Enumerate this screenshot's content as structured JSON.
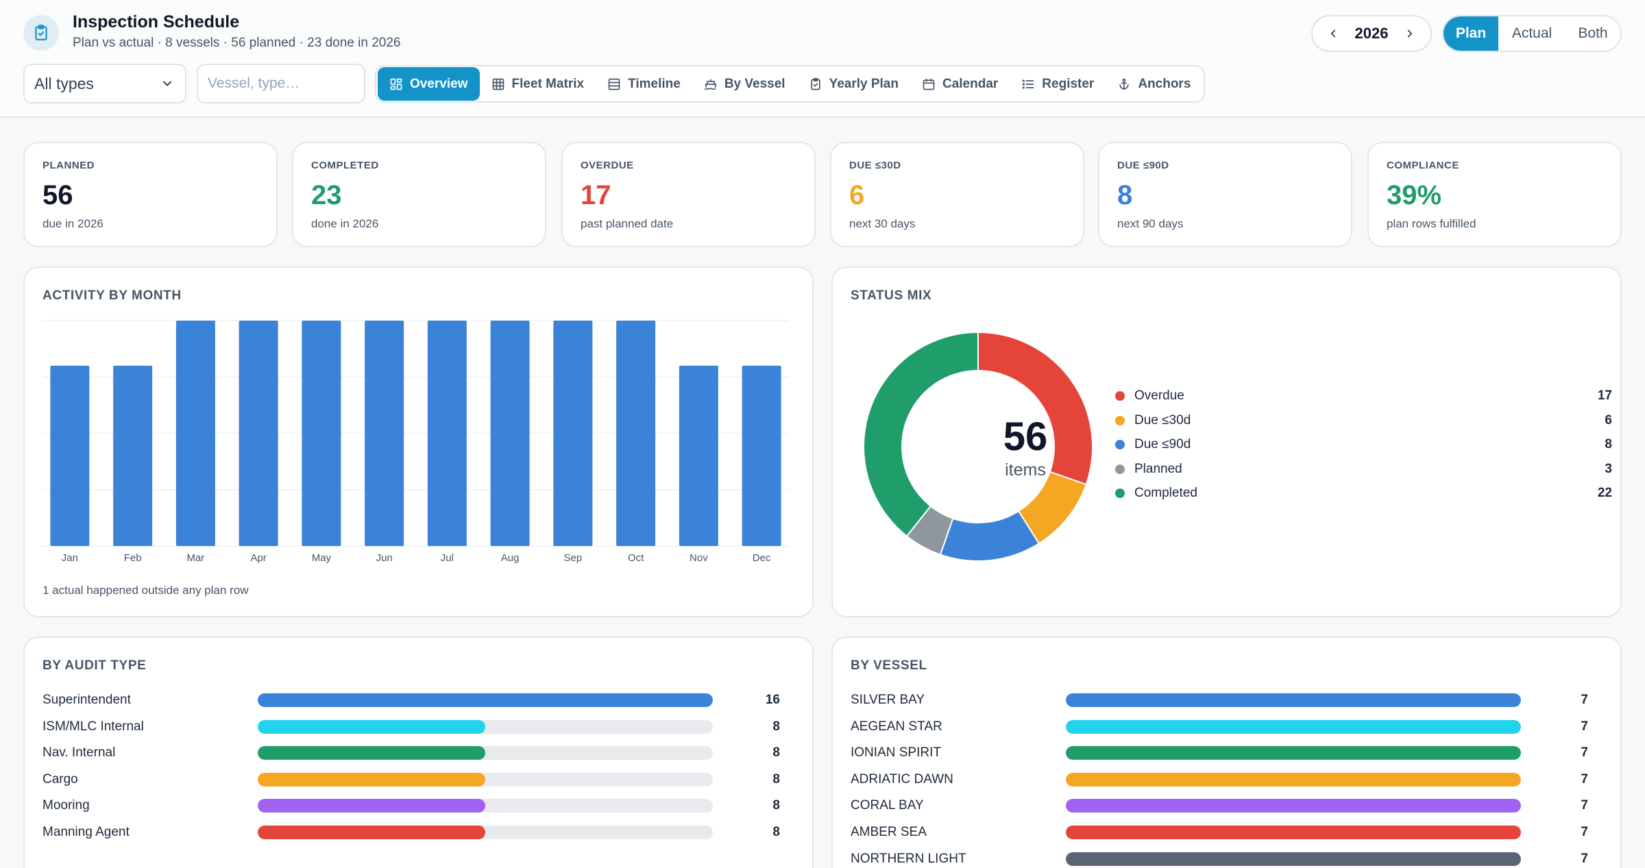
{
  "header": {
    "title": "Inspection Schedule",
    "subtitle": "Plan vs actual · 8 vessels · 56 planned · 23 done in 2026",
    "year": "2026",
    "modes": [
      "Plan",
      "Actual",
      "Both"
    ],
    "active_mode": "Plan"
  },
  "filters": {
    "type_value": "All types",
    "search_placeholder": "Vessel, type…"
  },
  "tabs": [
    {
      "label": "Overview",
      "icon": "grid-icon",
      "active": true
    },
    {
      "label": "Fleet Matrix",
      "icon": "table-icon"
    },
    {
      "label": "Timeline",
      "icon": "timeline-icon"
    },
    {
      "label": "By Vessel",
      "icon": "ship-icon"
    },
    {
      "label": "Yearly Plan",
      "icon": "clipboard-icon"
    },
    {
      "label": "Calendar",
      "icon": "calendar-icon"
    },
    {
      "label": "Register",
      "icon": "list-icon"
    },
    {
      "label": "Anchors",
      "icon": "anchor-icon"
    }
  ],
  "kpis": [
    {
      "label": "PLANNED",
      "value": "56",
      "sub": "due in 2026",
      "color": "#111827"
    },
    {
      "label": "COMPLETED",
      "value": "23",
      "sub": "done in 2026",
      "color": "#1f9d6a"
    },
    {
      "label": "OVERDUE",
      "value": "17",
      "sub": "past planned date",
      "color": "#e5443b"
    },
    {
      "label": "DUE ≤30D",
      "value": "6",
      "sub": "next 30 days",
      "color": "#f5a623"
    },
    {
      "label": "DUE ≤90D",
      "value": "8",
      "sub": "next 90 days",
      "color": "#3b82d9"
    },
    {
      "label": "COMPLIANCE",
      "value": "39%",
      "sub": "plan rows fulfilled",
      "color": "#1f9d6a"
    }
  ],
  "activity": {
    "title": "ACTIVITY BY MONTH",
    "note": "1 actual happened outside any plan row"
  },
  "chart_data": {
    "type": "bar",
    "title": "ACTIVITY BY MONTH",
    "categories": [
      "Jan",
      "Feb",
      "Mar",
      "Apr",
      "May",
      "Jun",
      "Jul",
      "Aug",
      "Sep",
      "Oct",
      "Nov",
      "Dec"
    ],
    "values": [
      4,
      4,
      5,
      5,
      5,
      5,
      5,
      5,
      5,
      5,
      4,
      4
    ],
    "ylim": [
      0,
      5
    ],
    "grid": true,
    "color": "#3b82d9"
  },
  "status_mix": {
    "title": "STATUS MIX",
    "total": "56",
    "total_label": "items",
    "items": [
      {
        "name": "Overdue",
        "count": 17,
        "color": "#e5443b"
      },
      {
        "name": "Due ≤30d",
        "count": 6,
        "color": "#f5a623"
      },
      {
        "name": "Due ≤90d",
        "count": 8,
        "color": "#3b82d9"
      },
      {
        "name": "Planned",
        "count": 3,
        "color": "#8f969e"
      },
      {
        "name": "Completed",
        "count": 22,
        "color": "#1f9d6a"
      }
    ]
  },
  "by_audit_type": {
    "title": "BY AUDIT TYPE",
    "max": 16,
    "rows": [
      {
        "name": "Superintendent",
        "count": 16,
        "color": "#3b82d9"
      },
      {
        "name": "ISM/MLC Internal",
        "count": 8,
        "color": "#22d3ee"
      },
      {
        "name": "Nav. Internal",
        "count": 8,
        "color": "#1f9d6a"
      },
      {
        "name": "Cargo",
        "count": 8,
        "color": "#f5a623"
      },
      {
        "name": "Mooring",
        "count": 8,
        "color": "#a062f0"
      },
      {
        "name": "Manning Agent",
        "count": 8,
        "color": "#e5443b"
      }
    ]
  },
  "by_vessel": {
    "title": "BY VESSEL",
    "max": 7,
    "rows": [
      {
        "name": "SILVER BAY",
        "count": 7,
        "color": "#3b82d9"
      },
      {
        "name": "AEGEAN STAR",
        "count": 7,
        "color": "#22d3ee"
      },
      {
        "name": "IONIAN SPIRIT",
        "count": 7,
        "color": "#1f9d6a"
      },
      {
        "name": "ADRIATIC DAWN",
        "count": 7,
        "color": "#f5a623"
      },
      {
        "name": "CORAL BAY",
        "count": 7,
        "color": "#a062f0"
      },
      {
        "name": "AMBER SEA",
        "count": 7,
        "color": "#e5443b"
      },
      {
        "name": "NORTHERN LIGHT",
        "count": 7,
        "color": "#5b6472"
      }
    ]
  }
}
